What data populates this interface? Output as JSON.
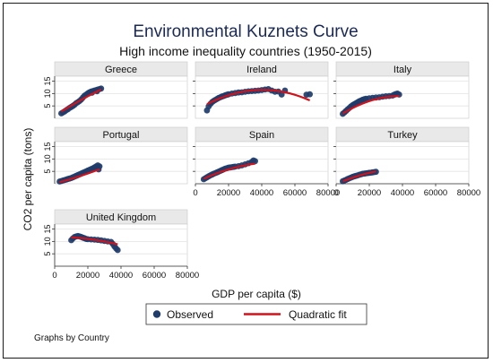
{
  "chart_data": {
    "type": "scatter",
    "title": "Environmental Kuznets Curve",
    "subtitle": "High income inequality countries (1950-2015)",
    "xlabel": "GDP per capita ($)",
    "ylabel": "CO2 per capita (tons)",
    "note": "Graphs by Country",
    "xlim": [
      0,
      80000
    ],
    "ylim": [
      0,
      17
    ],
    "xticks": [
      0,
      20000,
      40000,
      60000,
      80000
    ],
    "yticks": [
      5,
      10,
      15
    ],
    "grid": true,
    "legend": {
      "position": "bottom",
      "entries": [
        "Observed",
        "Quadratic fit"
      ]
    },
    "colors": {
      "observed": "#1f3c6b",
      "fit": "#d0121b",
      "panel_header": "#e9e9e9",
      "title": "#1b2a55"
    },
    "panels": [
      {
        "country": "Greece",
        "observed": [
          [
            4000,
            2.0
          ],
          [
            5000,
            2.4
          ],
          [
            6000,
            2.8
          ],
          [
            7000,
            3.3
          ],
          [
            8000,
            3.7
          ],
          [
            9000,
            4.2
          ],
          [
            10000,
            4.6
          ],
          [
            11000,
            5.0
          ],
          [
            12000,
            5.5
          ],
          [
            13000,
            6.1
          ],
          [
            14000,
            6.5
          ],
          [
            15000,
            7.0
          ],
          [
            16000,
            7.6
          ],
          [
            17000,
            8.4
          ],
          [
            18000,
            9.1
          ],
          [
            19000,
            9.6
          ],
          [
            20000,
            10.1
          ],
          [
            21000,
            10.5
          ],
          [
            22000,
            10.8
          ],
          [
            23000,
            11.0
          ],
          [
            24000,
            11.2
          ],
          [
            25000,
            11.4
          ],
          [
            26000,
            11.6
          ],
          [
            27000,
            11.8
          ],
          [
            28000,
            12.0
          ],
          [
            22500,
            10.3
          ],
          [
            25500,
            10.9
          ]
        ],
        "fit": [
          1.1,
          0.00042,
          -1.5e-09
        ]
      },
      {
        "country": "Ireland",
        "observed": [
          [
            7000,
            3.2
          ],
          [
            8000,
            4.8
          ],
          [
            9000,
            5.8
          ],
          [
            10000,
            6.5
          ],
          [
            11000,
            7.0
          ],
          [
            12000,
            7.4
          ],
          [
            13000,
            7.8
          ],
          [
            14000,
            8.2
          ],
          [
            15000,
            8.5
          ],
          [
            16000,
            8.8
          ],
          [
            17000,
            9.0
          ],
          [
            18000,
            9.3
          ],
          [
            19000,
            9.5
          ],
          [
            20000,
            9.7
          ],
          [
            22000,
            10.0
          ],
          [
            24000,
            10.2
          ],
          [
            26000,
            10.4
          ],
          [
            28000,
            10.5
          ],
          [
            30000,
            10.7
          ],
          [
            32000,
            10.9
          ],
          [
            34000,
            11.0
          ],
          [
            36000,
            11.1
          ],
          [
            38000,
            11.2
          ],
          [
            40000,
            11.4
          ],
          [
            42000,
            11.6
          ],
          [
            44000,
            11.8
          ],
          [
            46000,
            11.2
          ],
          [
            48000,
            10.7
          ],
          [
            50000,
            10.8
          ],
          [
            52000,
            9.6
          ],
          [
            54000,
            11.2
          ],
          [
            67000,
            9.5
          ],
          [
            69000,
            9.7
          ]
        ],
        "fit": [
          3.0,
          0.00042,
          -5.2e-09
        ]
      },
      {
        "country": "Italy",
        "observed": [
          [
            4000,
            1.8
          ],
          [
            5000,
            2.4
          ],
          [
            6000,
            3.0
          ],
          [
            7000,
            3.6
          ],
          [
            8000,
            4.2
          ],
          [
            9000,
            4.8
          ],
          [
            10000,
            5.3
          ],
          [
            11000,
            5.7
          ],
          [
            12000,
            6.1
          ],
          [
            13000,
            6.5
          ],
          [
            14000,
            6.9
          ],
          [
            15000,
            7.2
          ],
          [
            16000,
            7.5
          ],
          [
            17000,
            7.7
          ],
          [
            18000,
            7.9
          ],
          [
            20000,
            8.1
          ],
          [
            22000,
            8.3
          ],
          [
            24000,
            8.4
          ],
          [
            26000,
            8.5
          ],
          [
            28000,
            8.7
          ],
          [
            30000,
            8.9
          ],
          [
            32000,
            9.0
          ],
          [
            34000,
            9.2
          ],
          [
            35000,
            9.5
          ],
          [
            36000,
            9.8
          ],
          [
            37000,
            10.0
          ],
          [
            38000,
            9.6
          ]
        ],
        "fit": [
          0.2,
          0.000455,
          -5.9e-09
        ]
      },
      {
        "country": "Portugal",
        "observed": [
          [
            3000,
            0.9
          ],
          [
            4000,
            1.1
          ],
          [
            5000,
            1.3
          ],
          [
            6000,
            1.5
          ],
          [
            7000,
            1.7
          ],
          [
            8000,
            1.9
          ],
          [
            9000,
            2.1
          ],
          [
            10000,
            2.3
          ],
          [
            11000,
            2.6
          ],
          [
            12000,
            2.9
          ],
          [
            13000,
            3.2
          ],
          [
            14000,
            3.5
          ],
          [
            15000,
            3.8
          ],
          [
            16000,
            4.1
          ],
          [
            17000,
            4.4
          ],
          [
            18000,
            4.7
          ],
          [
            19000,
            5.0
          ],
          [
            20000,
            5.3
          ],
          [
            21000,
            5.6
          ],
          [
            22000,
            5.9
          ],
          [
            23000,
            6.2
          ],
          [
            24000,
            6.6
          ],
          [
            25000,
            7.0
          ],
          [
            26000,
            7.4
          ],
          [
            27000,
            7.0
          ],
          [
            26500,
            5.8
          ]
        ],
        "fit": [
          0.1,
          0.000174,
          1.4e-09
        ]
      },
      {
        "country": "Spain",
        "observed": [
          [
            5000,
            1.8
          ],
          [
            6000,
            2.2
          ],
          [
            7000,
            2.6
          ],
          [
            8000,
            3.0
          ],
          [
            9000,
            3.4
          ],
          [
            10000,
            3.7
          ],
          [
            11000,
            4.0
          ],
          [
            12000,
            4.3
          ],
          [
            13000,
            4.6
          ],
          [
            14000,
            4.9
          ],
          [
            15000,
            5.2
          ],
          [
            16000,
            5.5
          ],
          [
            17000,
            5.8
          ],
          [
            18000,
            6.1
          ],
          [
            19000,
            6.3
          ],
          [
            20000,
            6.5
          ],
          [
            21000,
            6.6
          ],
          [
            22000,
            6.7
          ],
          [
            23000,
            6.8
          ],
          [
            24000,
            6.9
          ],
          [
            26000,
            7.1
          ],
          [
            28000,
            7.4
          ],
          [
            30000,
            7.8
          ],
          [
            32000,
            8.3
          ],
          [
            34000,
            8.8
          ],
          [
            35000,
            9.4
          ],
          [
            36000,
            9.1
          ]
        ],
        "fit": [
          0.4,
          0.00034,
          -3.5e-09
        ]
      },
      {
        "country": "Turkey",
        "observed": [
          [
            4000,
            1.0
          ],
          [
            5000,
            1.3
          ],
          [
            6000,
            1.6
          ],
          [
            7000,
            1.9
          ],
          [
            8000,
            2.2
          ],
          [
            9000,
            2.5
          ],
          [
            10000,
            2.8
          ],
          [
            11000,
            3.0
          ],
          [
            12000,
            3.2
          ],
          [
            13000,
            3.4
          ],
          [
            14000,
            3.6
          ],
          [
            15000,
            3.8
          ],
          [
            16000,
            4.0
          ],
          [
            17000,
            4.1
          ],
          [
            18000,
            4.2
          ],
          [
            19000,
            4.3
          ],
          [
            20000,
            4.4
          ],
          [
            21000,
            4.5
          ],
          [
            22000,
            4.6
          ],
          [
            23000,
            4.7
          ],
          [
            24000,
            4.8
          ]
        ],
        "fit": [
          -0.2,
          0.0003,
          -3.5e-09
        ]
      },
      {
        "country": "United Kingdom",
        "observed": [
          [
            10000,
            10.5
          ],
          [
            11000,
            11.2
          ],
          [
            12000,
            11.8
          ],
          [
            13000,
            12.0
          ],
          [
            14000,
            12.2
          ],
          [
            15000,
            12.0
          ],
          [
            16000,
            11.8
          ],
          [
            17000,
            11.5
          ],
          [
            18000,
            11.3
          ],
          [
            19000,
            11.0
          ],
          [
            20000,
            10.9
          ],
          [
            22000,
            10.8
          ],
          [
            24000,
            10.7
          ],
          [
            26000,
            10.6
          ],
          [
            28000,
            10.4
          ],
          [
            30000,
            10.2
          ],
          [
            32000,
            10.0
          ],
          [
            34000,
            9.8
          ],
          [
            35000,
            9.0
          ],
          [
            36000,
            8.0
          ],
          [
            37000,
            7.2
          ],
          [
            38000,
            6.5
          ]
        ],
        "fit": [
          11.8,
          5e-06,
          -2.2e-09
        ]
      }
    ]
  }
}
